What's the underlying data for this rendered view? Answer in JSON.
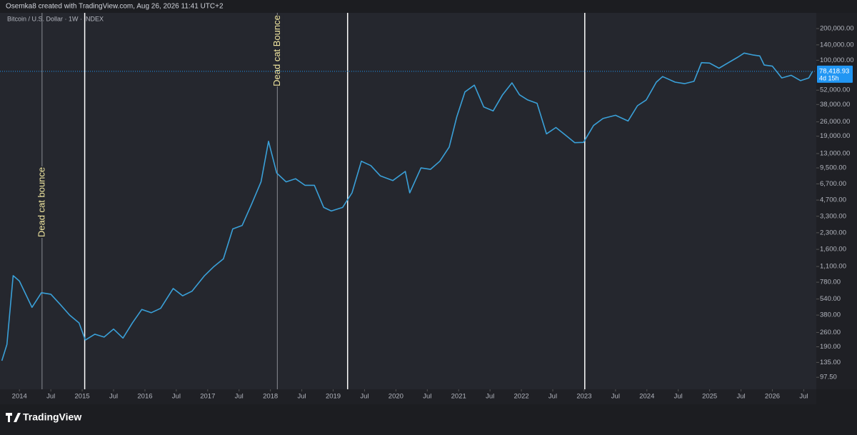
{
  "header": "Osemka8 created with TradingView.com, Aug 26, 2026 11:41 UTC+2",
  "brand": "TradingView",
  "chart_data": {
    "type": "line",
    "title": "Bitcoin / U.S. Dollar · 1W · INDEX",
    "log_scale": true,
    "grid": false,
    "color": "#3aa0d8",
    "x": [
      2013.72,
      2013.8,
      2013.9,
      2014.0,
      2014.1,
      2014.2,
      2014.35,
      2014.5,
      2014.65,
      2014.8,
      2014.95,
      2015.05,
      2015.2,
      2015.35,
      2015.5,
      2015.65,
      2015.8,
      2015.95,
      2016.1,
      2016.25,
      2016.45,
      2016.6,
      2016.75,
      2016.95,
      2017.1,
      2017.25,
      2017.4,
      2017.55,
      2017.7,
      2017.85,
      2017.97,
      2018.1,
      2018.25,
      2018.4,
      2018.55,
      2018.7,
      2018.85,
      2018.97,
      2019.15,
      2019.3,
      2019.45,
      2019.6,
      2019.75,
      2019.95,
      2020.15,
      2020.22,
      2020.4,
      2020.55,
      2020.7,
      2020.85,
      2020.97,
      2021.1,
      2021.25,
      2021.4,
      2021.55,
      2021.7,
      2021.85,
      2021.97,
      2022.1,
      2022.25,
      2022.4,
      2022.55,
      2022.7,
      2022.85,
      2022.99,
      2023.15,
      2023.3,
      2023.5,
      2023.7,
      2023.85,
      2023.99,
      2024.15,
      2024.25,
      2024.45,
      2024.6,
      2024.75,
      2024.87,
      2025.0,
      2025.15,
      2025.3,
      2025.45,
      2025.55,
      2025.7,
      2025.8,
      2025.87,
      2026.0,
      2026.15,
      2026.3,
      2026.45,
      2026.58,
      2026.64
    ],
    "values": [
      140,
      200,
      900,
      800,
      600,
      450,
      620,
      600,
      480,
      380,
      320,
      220,
      250,
      235,
      280,
      230,
      320,
      430,
      400,
      440,
      680,
      580,
      640,
      900,
      1100,
      1300,
      2500,
      2700,
      4300,
      7000,
      17000,
      8500,
      7000,
      7500,
      6500,
      6500,
      4000,
      3700,
      4000,
      5500,
      11000,
      10000,
      8000,
      7200,
      8800,
      5500,
      9500,
      9200,
      11000,
      15000,
      29000,
      50000,
      58000,
      36000,
      33000,
      47000,
      61000,
      47000,
      42000,
      39000,
      20000,
      23000,
      19500,
      16500,
      16600,
      24000,
      28000,
      30000,
      26500,
      37000,
      42000,
      62000,
      70000,
      62000,
      60000,
      63000,
      95000,
      94000,
      84000,
      95000,
      107000,
      117000,
      112000,
      110000,
      90000,
      88000,
      68000,
      72000,
      64000,
      68000,
      78418.93
    ],
    "xlim": [
      2013.69,
      2026.7
    ],
    "ylim": [
      75,
      282000
    ],
    "xticks": [
      {
        "value": 2014,
        "label": "2014"
      },
      {
        "value": 2014.5,
        "label": "Jul"
      },
      {
        "value": 2015,
        "label": "2015"
      },
      {
        "value": 2015.5,
        "label": "Jul"
      },
      {
        "value": 2016,
        "label": "2016"
      },
      {
        "value": 2016.5,
        "label": "Jul"
      },
      {
        "value": 2017,
        "label": "2017"
      },
      {
        "value": 2017.5,
        "label": "Jul"
      },
      {
        "value": 2018,
        "label": "2018"
      },
      {
        "value": 2018.5,
        "label": "Jul"
      },
      {
        "value": 2019,
        "label": "2019"
      },
      {
        "value": 2019.5,
        "label": "Jul"
      },
      {
        "value": 2020,
        "label": "2020"
      },
      {
        "value": 2020.5,
        "label": "Jul"
      },
      {
        "value": 2021,
        "label": "2021"
      },
      {
        "value": 2021.5,
        "label": "Jul"
      },
      {
        "value": 2022,
        "label": "2022"
      },
      {
        "value": 2022.5,
        "label": "Jul"
      },
      {
        "value": 2023,
        "label": "2023"
      },
      {
        "value": 2023.5,
        "label": "Jul"
      },
      {
        "value": 2024,
        "label": "2024"
      },
      {
        "value": 2024.5,
        "label": "Jul"
      },
      {
        "value": 2025,
        "label": "2025"
      },
      {
        "value": 2025.5,
        "label": "Jul"
      },
      {
        "value": 2026,
        "label": "2026"
      },
      {
        "value": 2026.5,
        "label": "Jul"
      }
    ],
    "yticks": [
      {
        "value": 200000,
        "label": "200,000.00"
      },
      {
        "value": 140000,
        "label": "140,000.00"
      },
      {
        "value": 100000,
        "label": "100,000.00"
      },
      {
        "value": 52000,
        "label": "52,000.00"
      },
      {
        "value": 38000,
        "label": "38,000.00"
      },
      {
        "value": 26000,
        "label": "26,000.00"
      },
      {
        "value": 19000,
        "label": "19,000.00"
      },
      {
        "value": 13000,
        "label": "13,000.00"
      },
      {
        "value": 9500,
        "label": "9,500.00"
      },
      {
        "value": 6700,
        "label": "6,700.00"
      },
      {
        "value": 4700,
        "label": "4,700.00"
      },
      {
        "value": 3300,
        "label": "3,300.00"
      },
      {
        "value": 2300,
        "label": "2,300.00"
      },
      {
        "value": 1600,
        "label": "1,600.00"
      },
      {
        "value": 1100,
        "label": "1,100.00"
      },
      {
        "value": 780,
        "label": "780.00"
      },
      {
        "value": 540,
        "label": "540.00"
      },
      {
        "value": 380,
        "label": "380.00"
      },
      {
        "value": 260,
        "label": "260.00"
      },
      {
        "value": 190,
        "label": "190.00"
      },
      {
        "value": 135,
        "label": "135.00"
      },
      {
        "value": 97.5,
        "label": "97.50"
      }
    ],
    "last_price": {
      "value": 78418.93,
      "label": "78,418.93",
      "countdown": "4d 15h"
    },
    "vlines": [
      {
        "x": 2015.04,
        "color": "#ffffff"
      },
      {
        "x": 2019.23,
        "color": "#ffffff"
      },
      {
        "x": 2023.01,
        "color": "#ffffff"
      }
    ],
    "annotations": [
      {
        "text": "Dead cat bounce",
        "x": 2014.36,
        "color": "#f0e6a0"
      },
      {
        "text": "Dead cat Bounce",
        "x": 2018.11,
        "color": "#f0e6a0"
      }
    ]
  }
}
